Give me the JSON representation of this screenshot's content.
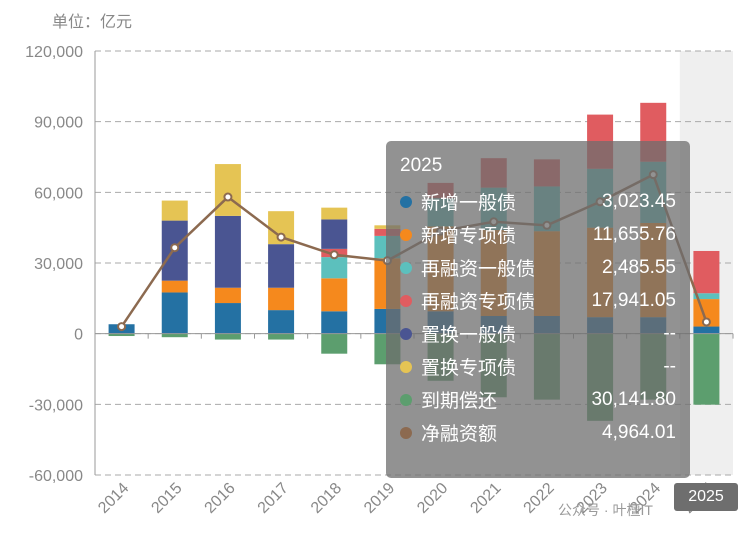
{
  "unit_label": "单位：亿元",
  "watermark": "公众号 · 叶檀IT",
  "chart_data": {
    "type": "bar",
    "stacked": true,
    "categories": [
      "2014",
      "2015",
      "2016",
      "2017",
      "2018",
      "2019",
      "2020",
      "2021",
      "2022",
      "2023",
      "2024",
      "2025"
    ],
    "ylim": [
      -60000,
      120000
    ],
    "yticks": [
      -60000,
      -30000,
      0,
      30000,
      60000,
      90000,
      120000
    ],
    "ytick_labels": [
      "-60,000",
      "-30,000",
      "0",
      "30,000",
      "60,000",
      "90,000",
      "120,000"
    ],
    "highlight_category": "2025",
    "grid": true,
    "series": [
      {
        "name": "新增一般债",
        "color": "#2471a3",
        "values": [
          4000,
          17500,
          13000,
          10000,
          9500,
          10500,
          9500,
          7500,
          7500,
          7000,
          7000,
          3023.45
        ]
      },
      {
        "name": "新增专项债",
        "color": "#f5891d",
        "values": [
          0,
          5000,
          6500,
          9500,
          14000,
          21500,
          36000,
          36500,
          36000,
          38000,
          40000,
          11655.76
        ]
      },
      {
        "name": "再融资一般债",
        "color": "#5cc0bd",
        "values": [
          0,
          0,
          0,
          0,
          9000,
          9500,
          12000,
          18000,
          19000,
          25000,
          26000,
          2485.55
        ]
      },
      {
        "name": "再融资专项债",
        "color": "#e05c60",
        "values": [
          0,
          0,
          0,
          0,
          3500,
          3000,
          6500,
          12500,
          11500,
          23000,
          25000,
          17941.05
        ]
      },
      {
        "name": "置换一般债",
        "color": "#4a5592",
        "values": [
          0,
          25500,
          30500,
          18500,
          12500,
          0,
          0,
          0,
          0,
          0,
          0,
          0
        ]
      },
      {
        "name": "置换专项债",
        "color": "#e5c454",
        "values": [
          0,
          8500,
          22000,
          14000,
          5000,
          1500,
          0,
          0,
          0,
          0,
          0,
          0
        ]
      },
      {
        "name": "到期偿还",
        "color": "#5c9e6e",
        "values": [
          -1000,
          -1500,
          -2500,
          -2500,
          -8500,
          -13000,
          -20000,
          -27000,
          -28000,
          -37000,
          -28000,
          -30141.8
        ]
      },
      {
        "name": "净融资额",
        "color": "#8c6a50",
        "type": "line",
        "values": [
          3000,
          36500,
          58000,
          41000,
          33500,
          31000,
          43500,
          47500,
          46000,
          56000,
          67500,
          4964.01
        ]
      }
    ]
  },
  "tooltip": {
    "title": "2025",
    "rows": [
      {
        "name": "新增一般债",
        "value": "3,023.45",
        "color": "#2471a3"
      },
      {
        "name": "新增专项债",
        "value": "11,655.76",
        "color": "#f5891d"
      },
      {
        "name": "再融资一般债",
        "value": "2,485.55",
        "color": "#5cc0bd"
      },
      {
        "name": "再融资专项债",
        "value": "17,941.05",
        "color": "#e05c60"
      },
      {
        "name": "置换一般债",
        "value": "--",
        "color": "#4a5592"
      },
      {
        "name": "置换专项债",
        "value": "--",
        "color": "#e5c454"
      },
      {
        "name": "到期偿还",
        "value": "30,141.80",
        "color": "#5c9e6e"
      },
      {
        "name": "净融资额",
        "value": "4,964.01",
        "color": "#8c6a50"
      }
    ]
  }
}
